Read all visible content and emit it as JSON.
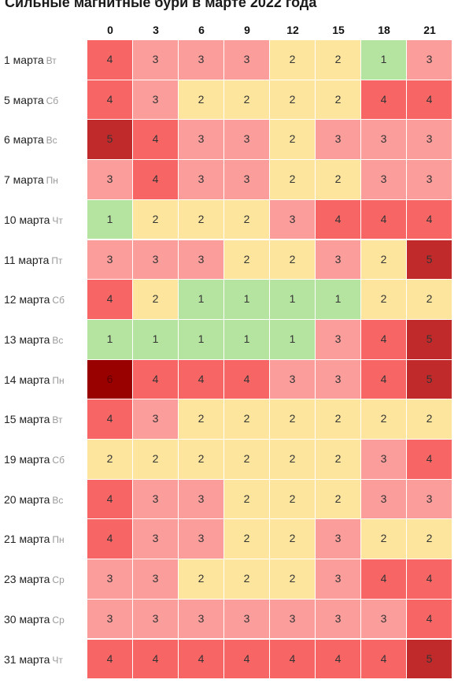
{
  "title": "Сильные магнитные бури в марте 2022 года",
  "chart_data": {
    "type": "heatmap",
    "title": "Сильные магнитные бури в марте 2022 года",
    "columns": [
      "0",
      "3",
      "6",
      "9",
      "12",
      "15",
      "18",
      "21"
    ],
    "rows": [
      {
        "date": "1 марта",
        "dow": "Вт",
        "values": [
          4,
          3,
          3,
          3,
          2,
          2,
          1,
          3
        ]
      },
      {
        "date": "5 марта",
        "dow": "Сб",
        "values": [
          4,
          3,
          2,
          2,
          2,
          2,
          4,
          4
        ]
      },
      {
        "date": "6 марта",
        "dow": "Вс",
        "values": [
          5,
          4,
          3,
          3,
          2,
          3,
          3,
          3
        ]
      },
      {
        "date": "7 марта",
        "dow": "Пн",
        "values": [
          3,
          4,
          3,
          3,
          2,
          2,
          3,
          3
        ]
      },
      {
        "date": "10 марта",
        "dow": "Чт",
        "values": [
          1,
          2,
          2,
          2,
          3,
          4,
          4,
          4
        ]
      },
      {
        "date": "11 марта",
        "dow": "Пт",
        "values": [
          3,
          3,
          3,
          2,
          2,
          3,
          2,
          5
        ]
      },
      {
        "date": "12 марта",
        "dow": "Сб",
        "values": [
          4,
          2,
          1,
          1,
          1,
          1,
          2,
          2
        ]
      },
      {
        "date": "13 марта",
        "dow": "Вс",
        "values": [
          1,
          1,
          1,
          1,
          1,
          3,
          4,
          5
        ]
      },
      {
        "date": "14 марта",
        "dow": "Пн",
        "values": [
          6,
          4,
          4,
          4,
          3,
          3,
          4,
          5
        ]
      },
      {
        "date": "15 марта",
        "dow": "Вт",
        "values": [
          4,
          3,
          2,
          2,
          2,
          2,
          2,
          2
        ]
      },
      {
        "date": "19 марта",
        "dow": "Сб",
        "values": [
          2,
          2,
          2,
          2,
          2,
          2,
          3,
          4
        ]
      },
      {
        "date": "20 марта",
        "dow": "Вс",
        "values": [
          4,
          3,
          3,
          2,
          2,
          2,
          3,
          3
        ]
      },
      {
        "date": "21 марта",
        "dow": "Пн",
        "values": [
          4,
          3,
          3,
          2,
          2,
          3,
          2,
          2
        ]
      },
      {
        "date": "23 марта",
        "dow": "Ср",
        "values": [
          3,
          3,
          2,
          2,
          2,
          3,
          4,
          4
        ]
      },
      {
        "date": "30 марта",
        "dow": "Ср",
        "values": [
          3,
          3,
          3,
          3,
          3,
          3,
          3,
          4
        ]
      },
      {
        "date": "31 марта",
        "dow": "Чт",
        "values": [
          4,
          4,
          4,
          4,
          4,
          4,
          4,
          5
        ]
      }
    ],
    "colors": {
      "1": "#b5e4a0",
      "2": "#fde59e",
      "3": "#fb9d9b",
      "4": "#f76565",
      "5": "#c12a2a",
      "6": "#990000"
    }
  }
}
